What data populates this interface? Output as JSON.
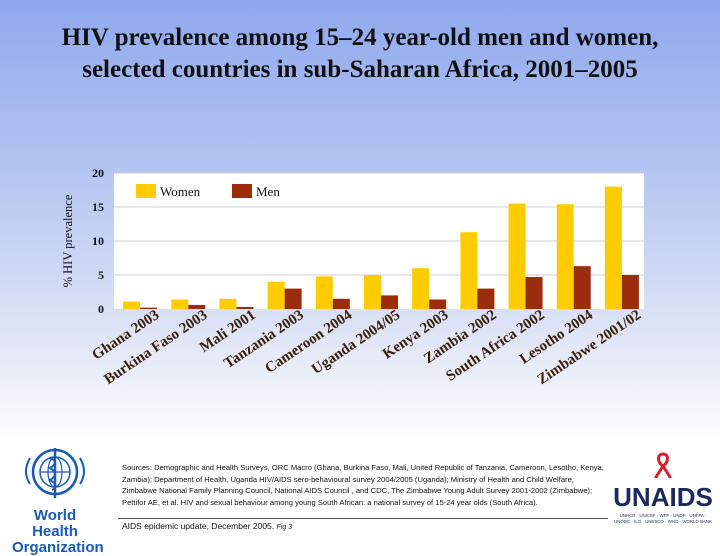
{
  "title": {
    "line1": "HIV prevalence among 15–24 year-old men and women,",
    "line2": "selected countries in sub-Saharan Africa, 2001–2005"
  },
  "chart_data": {
    "type": "bar",
    "ylabel": "% HIV prevalence",
    "ylim": [
      0,
      20
    ],
    "yticks": [
      "0",
      "5",
      "10",
      "15",
      "20"
    ],
    "categories": [
      "Ghana 2003",
      "Burkina Faso 2003",
      "Mali 2001",
      "Tanzania 2003",
      "Cameroon 2004",
      "Uganda 2004/05",
      "Kenya 2003",
      "Zambia 2002",
      "South Africa 2002",
      "Lesotho 2004",
      "Zimbabwe 2001/02"
    ],
    "series": [
      {
        "name": "Women",
        "color": "#ffcc00",
        "values": [
          1.1,
          1.4,
          1.5,
          4.0,
          4.8,
          5.0,
          6.0,
          11.3,
          15.5,
          15.4,
          18.0
        ]
      },
      {
        "name": "Men",
        "color": "#9b2c0c",
        "values": [
          0.2,
          0.6,
          0.3,
          3.0,
          1.5,
          2.0,
          1.4,
          3.0,
          4.7,
          6.3,
          5.0
        ]
      }
    ],
    "legend_position": "top-left"
  },
  "footer": {
    "sources": "Sources:  Demographic and Health Surveys, ORC Macro (Ghana, Burkina Faso, Mali, United Republic of Tanzania, Cameroon, Lesotho, Kenya, Zambia); Department of Health, Uganda HIV/AIDS sero-behavioural survey 2004/2005 (Uganda); Ministry of Health and Child Welfare, Zimbabwe National Family Planning Council, National AIDS Council , and CDC, The Zimbabwe Young Adult Survey 2001-2002 (Zimbabwe); Pettifor AE, et al. HIV and sexual behaviour among young South African: a national survey of 15-24 year olds (South Africa).",
    "update": "AIDS epidemic update, December 2005.",
    "fig": "Fig 3"
  },
  "logos": {
    "who_line1": "World Health",
    "who_line2": "Organization",
    "unaids": "UNAIDS",
    "unaids_tagline": "UNHCR · UNICEF · WFP · UNDP · UNFPA · UNODC · ILO · UNESCO · WHO · WORLD BANK"
  }
}
